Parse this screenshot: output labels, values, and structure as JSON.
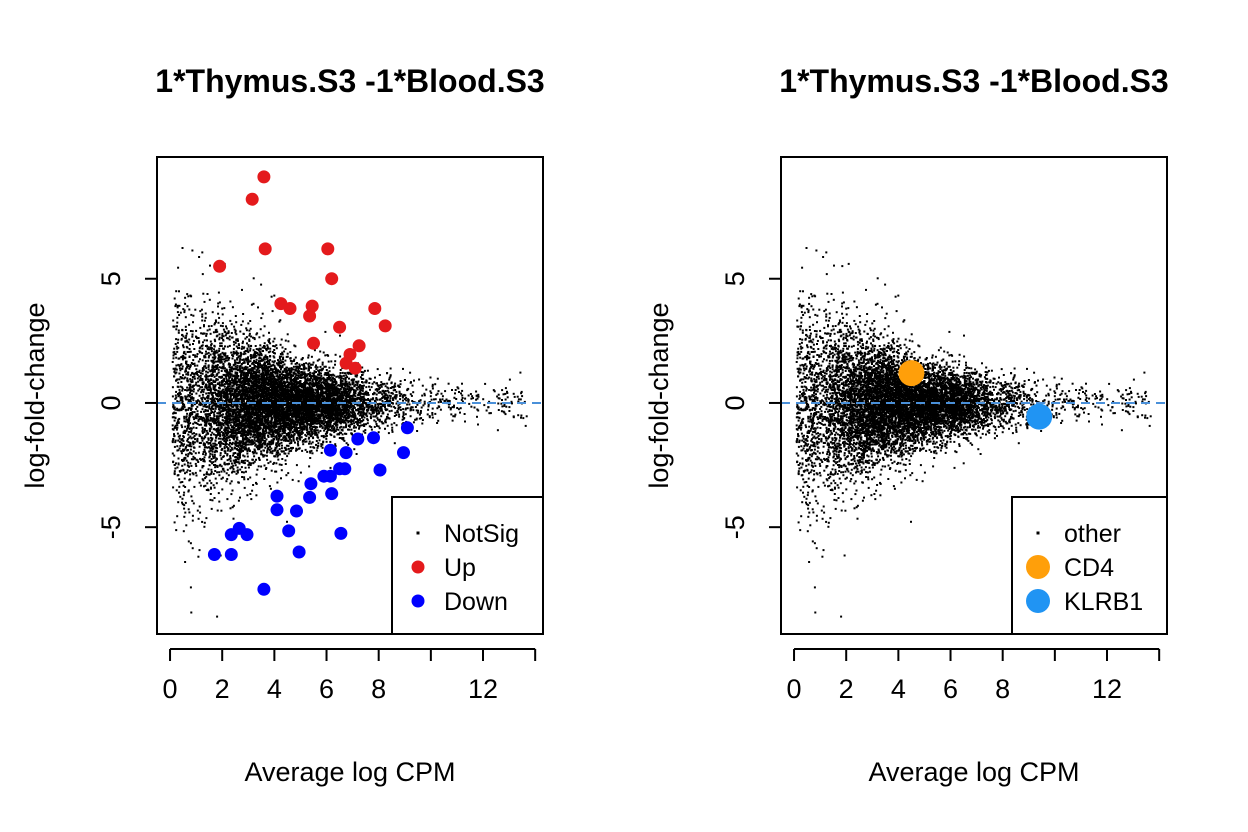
{
  "chart_data": [
    {
      "type": "scatter",
      "title": "1*Thymus.S3 -1*Blood.S3",
      "xlabel": "Average log CPM",
      "ylabel": "log-fold-change",
      "xlim": [
        -0.5,
        14.3
      ],
      "ylim": [
        -9.3,
        9.9
      ],
      "x_ticks": [
        0,
        2,
        4,
        6,
        8,
        10,
        12,
        14
      ],
      "x_tick_labels": [
        "0",
        "2",
        "4",
        "6",
        "8",
        "",
        "12",
        ""
      ],
      "y_ticks": [
        -5,
        0,
        5
      ],
      "y_tick_labels": [
        "-5",
        "0",
        "5"
      ],
      "reference_line": {
        "y": 0,
        "style": "dashed",
        "color": "#4a90d9"
      },
      "background_cloud": {
        "name": "NotSig",
        "approx_points": 9000,
        "x_range": [
          0.1,
          13.8
        ],
        "spread_description": "funnel: wide at low CPM, narrow at high CPM"
      },
      "legend": {
        "position": "bottom-right",
        "entries": [
          {
            "label": "NotSig",
            "color": "#000000",
            "marker": "dot"
          },
          {
            "label": "Up",
            "color": "#e41a1c",
            "marker": "circle"
          },
          {
            "label": "Down",
            "color": "#0000ff",
            "marker": "circle"
          }
        ]
      },
      "series": [
        {
          "name": "Up",
          "color": "#e41a1c",
          "points": [
            [
              3.6,
              9.1
            ],
            [
              3.15,
              8.2
            ],
            [
              3.65,
              6.2
            ],
            [
              1.9,
              5.5
            ],
            [
              6.05,
              6.2
            ],
            [
              6.2,
              5.0
            ],
            [
              4.25,
              4.0
            ],
            [
              4.6,
              3.8
            ],
            [
              5.45,
              3.9
            ],
            [
              5.35,
              3.5
            ],
            [
              6.5,
              3.05
            ],
            [
              7.85,
              3.8
            ],
            [
              8.25,
              3.1
            ],
            [
              5.5,
              2.4
            ],
            [
              7.25,
              2.3
            ],
            [
              6.9,
              1.95
            ],
            [
              6.75,
              1.6
            ],
            [
              7.1,
              1.4
            ]
          ]
        },
        {
          "name": "Down",
          "color": "#0000ff",
          "points": [
            [
              9.1,
              -1.0
            ],
            [
              7.8,
              -1.4
            ],
            [
              7.2,
              -1.45
            ],
            [
              6.15,
              -1.9
            ],
            [
              6.75,
              -2.0
            ],
            [
              8.95,
              -2.0
            ],
            [
              6.5,
              -2.65
            ],
            [
              6.15,
              -2.95
            ],
            [
              6.7,
              -2.65
            ],
            [
              8.05,
              -2.7
            ],
            [
              5.9,
              -2.95
            ],
            [
              5.4,
              -3.25
            ],
            [
              4.1,
              -3.75
            ],
            [
              5.35,
              -3.8
            ],
            [
              6.2,
              -3.65
            ],
            [
              4.1,
              -4.3
            ],
            [
              4.85,
              -4.35
            ],
            [
              4.55,
              -5.15
            ],
            [
              2.65,
              -5.05
            ],
            [
              2.95,
              -5.3
            ],
            [
              2.35,
              -5.3
            ],
            [
              6.55,
              -5.25
            ],
            [
              4.95,
              -6.0
            ],
            [
              1.7,
              -6.1
            ],
            [
              2.35,
              -6.1
            ],
            [
              3.6,
              -7.5
            ]
          ]
        }
      ]
    },
    {
      "type": "scatter",
      "title": "1*Thymus.S3 -1*Blood.S3",
      "xlabel": "Average log CPM",
      "ylabel": "log-fold-change",
      "xlim": [
        -0.5,
        14.3
      ],
      "ylim": [
        -9.3,
        9.9
      ],
      "x_ticks": [
        0,
        2,
        4,
        6,
        8,
        10,
        12,
        14
      ],
      "x_tick_labels": [
        "0",
        "2",
        "4",
        "6",
        "8",
        "",
        "12",
        ""
      ],
      "y_ticks": [
        -5,
        0,
        5
      ],
      "y_tick_labels": [
        "-5",
        "0",
        "5"
      ],
      "reference_line": {
        "y": 0,
        "style": "dashed",
        "color": "#4a90d9"
      },
      "background_cloud": {
        "name": "other",
        "approx_points": 9000,
        "x_range": [
          0.1,
          13.8
        ],
        "spread_description": "funnel: wide at low CPM, narrow at high CPM"
      },
      "legend": {
        "position": "bottom-right",
        "entries": [
          {
            "label": "other",
            "color": "#000000",
            "marker": "dot"
          },
          {
            "label": "CD4",
            "color": "#ff9f0a",
            "marker": "large-circle"
          },
          {
            "label": "KLRB1",
            "color": "#2094f3",
            "marker": "large-circle"
          }
        ]
      },
      "series": [
        {
          "name": "CD4",
          "color": "#ff9f0a",
          "points": [
            [
              4.5,
              1.2
            ]
          ]
        },
        {
          "name": "KLRB1",
          "color": "#2094f3",
          "points": [
            [
              9.4,
              -0.55
            ]
          ]
        }
      ]
    }
  ]
}
